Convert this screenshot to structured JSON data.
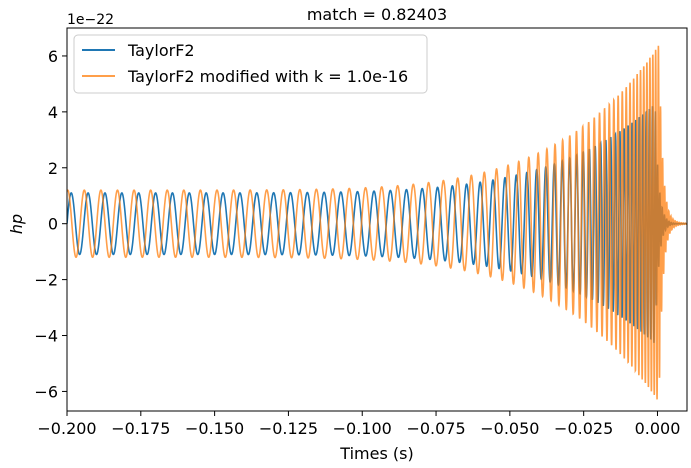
{
  "chart_data": {
    "type": "line",
    "title": "match = 0.82403",
    "xlabel": "Times (s)",
    "ylabel": "hp",
    "offset_text": "1e−22",
    "xlim": [
      -0.2,
      0.01
    ],
    "ylim": [
      -6.7,
      7.0
    ],
    "xticks": [
      -0.2,
      -0.175,
      -0.15,
      -0.125,
      -0.1,
      -0.075,
      -0.05,
      -0.025,
      0.0
    ],
    "xtick_labels": [
      "−0.200",
      "−0.175",
      "−0.150",
      "−0.125",
      "−0.100",
      "−0.075",
      "−0.050",
      "−0.025",
      "0.000"
    ],
    "yticks": [
      -6,
      -4,
      -2,
      0,
      2,
      4,
      6
    ],
    "ytick_labels": [
      "−6",
      "−4",
      "−2",
      "0",
      "2",
      "4",
      "6"
    ],
    "grid": false,
    "legend_position": "top-left",
    "series": [
      {
        "name": "TaylorF2",
        "color": "#1f77b4",
        "description_points": {
          "t_start": -0.2,
          "t_merger": -0.0008,
          "amp_start": 1.1,
          "amp_peak": 4.3,
          "freq_start": 175,
          "freq_peak": 1000
        }
      },
      {
        "name": "TaylorF2 modified with k = 1.0e-16",
        "color": "#ff7f0e",
        "description_points": {
          "t_start": -0.2,
          "t_merger": 0.0005,
          "amp_start": 1.2,
          "amp_peak": 6.4,
          "freq_start": 178,
          "freq_peak": 1100,
          "ringdown_amp": 0.15
        }
      }
    ]
  }
}
